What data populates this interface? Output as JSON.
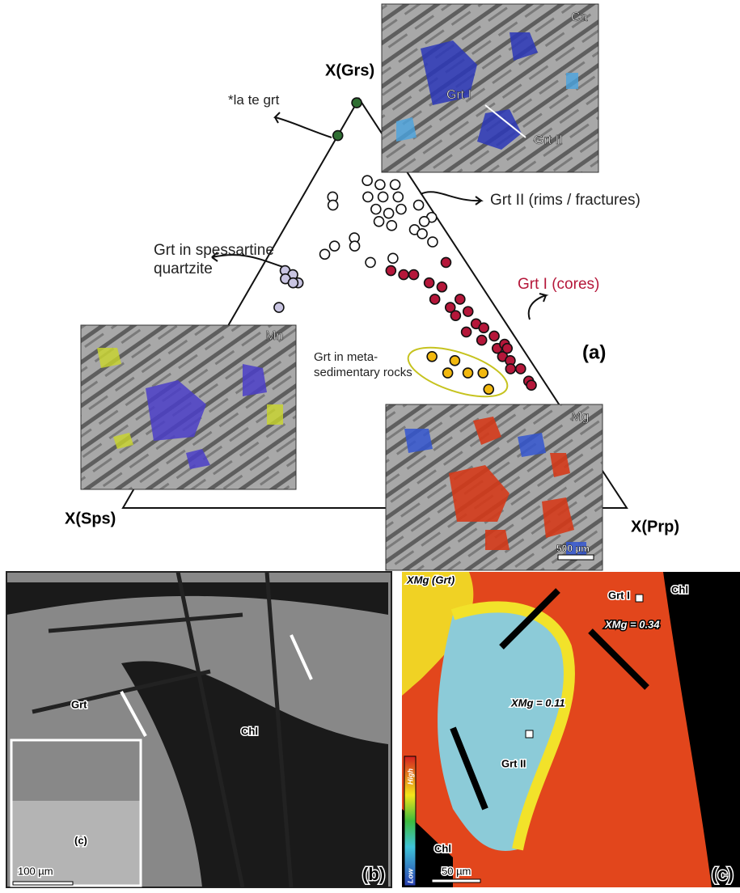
{
  "chart_data": {
    "type": "ternary",
    "axes": {
      "top": "X(Grs)",
      "left": "X(Sps)",
      "right": "X(Prp)"
    },
    "panel_label": "(a)",
    "series": [
      {
        "name": "*la te grt",
        "color": "#2f6e32",
        "grs": [
          0.99,
          0.91
        ],
        "prp": [
          0,
          0
        ]
      },
      {
        "name": "Grt II (rims / fractures)",
        "color": "#ffffff",
        "grs": [
          0.8,
          0.79,
          0.79,
          0.76,
          0.76,
          0.76,
          0.76,
          0.74,
          0.73,
          0.72,
          0.73,
          0.74,
          0.71,
          0.7,
          0.69,
          0.68,
          0.7,
          0.62,
          0.64,
          0.66,
          0.64,
          0.6,
          0.61,
          0.67,
          0.65
        ],
        "prp": [
          0.11,
          0.14,
          0.17,
          0.13,
          0.16,
          0.19,
          0.06,
          0.07,
          0.16,
          0.19,
          0.21,
          0.24,
          0.28,
          0.18,
          0.21,
          0.26,
          0.27,
          0.11,
          0.12,
          0.15,
          0.16,
          0.21,
          0.25,
          0.28,
          0.31
        ]
      },
      {
        "name": "Grt I (cores)",
        "color": "#b5173a",
        "grs": [
          0.58,
          0.57,
          0.57,
          0.6,
          0.55,
          0.54,
          0.51,
          0.49,
          0.51,
          0.47,
          0.48,
          0.45,
          0.43,
          0.44,
          0.41,
          0.42,
          0.39,
          0.4,
          0.37,
          0.36,
          0.34,
          0.34,
          0.39,
          0.31,
          0.3
        ],
        "prp": [
          0.26,
          0.29,
          0.31,
          0.36,
          0.35,
          0.38,
          0.38,
          0.42,
          0.43,
          0.44,
          0.46,
          0.49,
          0.48,
          0.51,
          0.52,
          0.54,
          0.56,
          0.57,
          0.58,
          0.6,
          0.61,
          0.63,
          0.58,
          0.66,
          0.67
        ]
      },
      {
        "name": "Grt in spessartine quartzite",
        "color": "#c9c5e2",
        "grs": [
          0.58,
          0.57,
          0.56,
          0.55,
          0.55,
          0.49
        ],
        "prp": [
          0.05,
          0.07,
          0.06,
          0.09,
          0.08,
          0.08
        ]
      },
      {
        "name": "Grt in meta-sedimentary rocks",
        "color": "#f2b80e",
        "grs": [
          0.37,
          0.36,
          0.33,
          0.33,
          0.33,
          0.29
        ],
        "prp": [
          0.44,
          0.49,
          0.49,
          0.53,
          0.56,
          0.59
        ]
      }
    ]
  },
  "insets": {
    "ca": {
      "element": "Ca",
      "grt1": "Grt I",
      "grt2": "Grt II"
    },
    "mn": {
      "element": "Mn"
    },
    "mg": {
      "element": "Mg",
      "scale": "500 µm"
    }
  },
  "panel_b": {
    "label": "(b)",
    "grt": "Grt",
    "chl": "Chl",
    "box": "(c)",
    "scale": "100 µm"
  },
  "panel_c": {
    "label": "(c)",
    "title": "XMg (Grt)",
    "xmg1": "XMg = 0.11",
    "xmg2": "XMg = 0.34",
    "grt2": "Grt II",
    "grt1": "Grt I",
    "chl1": "Chl",
    "chl2": "Chl",
    "high": "High",
    "low": "Low",
    "scale": "50 µm"
  }
}
